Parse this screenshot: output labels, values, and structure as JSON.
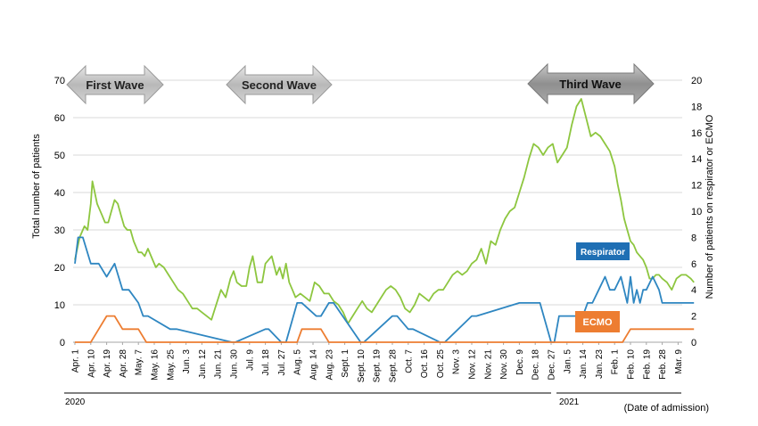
{
  "chart_data": {
    "type": "line",
    "title": "",
    "ylabel_left": "Total number of patients",
    "ylabel_right": "Number of patients on respirator or ECMO",
    "xlabel": "(Date of admission)",
    "ylim_left": [
      0,
      70
    ],
    "yticks_left": [
      "0",
      "10",
      "20",
      "30",
      "40",
      "50",
      "60",
      "70"
    ],
    "ylim_right": [
      0,
      20
    ],
    "yticks_right": [
      "0",
      "2",
      "4",
      "6",
      "8",
      "10",
      "12",
      "14",
      "16",
      "18",
      "20"
    ],
    "grid": true,
    "x_tick_labels": [
      "Apr. 1",
      "Apr. 10",
      "Apr. 19",
      "Apr. 28",
      "May. 7",
      "May. 16",
      "May. 25",
      "Jun. 3",
      "Jun. 12",
      "Jun. 21",
      "Jun. 30",
      "Jul. 9",
      "Jul. 18",
      "Jul. 27",
      "Aug. 5",
      "Aug. 14",
      "Aug. 23",
      "Sept. 1",
      "Sept. 10",
      "Sept. 19",
      "Sept. 28",
      "Oct. 7",
      "Oct. 16",
      "Oct. 25",
      "Nov. 3",
      "Nov. 12",
      "Nov. 21",
      "Nov. 30",
      "Dec. 9",
      "Dec. 18",
      "Dec. 27",
      "Jan. 5",
      "Jan. 14",
      "Jan. 23",
      "Feb. 1",
      "Feb. 10",
      "Feb. 19",
      "Feb. 28",
      "Mar. 9"
    ],
    "years": [
      "2020",
      "2021"
    ],
    "waves": [
      "First Wave",
      "Second Wave",
      "Third Wave"
    ],
    "series": [
      {
        "name": "",
        "axis": "left",
        "color": "#8DC63F",
        "x_tick_index": [
          0,
          0.3,
          0.6,
          0.8,
          1.0,
          1.1,
          1.2,
          1.4,
          1.5,
          1.7,
          1.9,
          2.1,
          2.3,
          2.5,
          2.7,
          2.9,
          3.1,
          3.3,
          3.5,
          3.7,
          4.0,
          4.2,
          4.4,
          4.6,
          4.9,
          5.1,
          5.3,
          5.6,
          5.9,
          6.2,
          6.5,
          6.8,
          7.1,
          7.4,
          7.7,
          8.0,
          8.3,
          8.6,
          8.9,
          9.2,
          9.5,
          9.8,
          10.0,
          10.2,
          10.5,
          10.8,
          11.0,
          11.2,
          11.5,
          11.8,
          12.0,
          12.2,
          12.4,
          12.7,
          12.9,
          13.1,
          13.3,
          13.5,
          13.7,
          13.9,
          14.2,
          14.5,
          14.8,
          15.1,
          15.4,
          15.7,
          16.0,
          16.3,
          16.6,
          16.9,
          17.2,
          17.5,
          17.8,
          18.1,
          18.4,
          18.7,
          19.0,
          19.3,
          19.6,
          19.9,
          20.2,
          20.5,
          20.8,
          21.1,
          21.4,
          21.7,
          22.0,
          22.3,
          22.6,
          22.9,
          23.2,
          23.5,
          23.8,
          24.1,
          24.4,
          24.7,
          25.0,
          25.3,
          25.6,
          25.9,
          26.2,
          26.5,
          26.8,
          27.1,
          27.4,
          27.7,
          28.0,
          28.3,
          28.6,
          28.9,
          29.2,
          29.5,
          29.8,
          30.1,
          30.4,
          30.7,
          31.0,
          31.3,
          31.6,
          31.9,
          32.2,
          32.5,
          32.8,
          33.1,
          33.4,
          33.7,
          34.0,
          34.2,
          34.4,
          34.6,
          34.8,
          35.0,
          35.2,
          35.4,
          35.6,
          35.8,
          36.0,
          36.2,
          36.4,
          36.6,
          36.8,
          37.0,
          37.3,
          37.6,
          37.9,
          38.2,
          38.5,
          38.8,
          39.0
        ],
        "values": [
          22,
          28,
          31,
          30,
          37,
          43,
          41,
          37,
          36,
          34,
          32,
          32,
          35,
          38,
          37,
          34,
          31,
          30,
          30,
          27,
          24,
          24,
          23,
          25,
          22,
          20,
          21,
          20,
          18,
          16,
          14,
          13,
          11,
          9,
          9,
          8,
          7,
          6,
          10,
          14,
          12,
          17,
          19,
          16,
          15,
          15,
          20,
          23,
          16,
          16,
          21,
          22,
          23,
          18,
          20,
          17,
          21,
          16,
          14,
          12,
          13,
          12,
          11,
          16,
          15,
          13,
          13,
          11,
          10,
          8,
          5,
          7,
          9,
          11,
          9,
          8,
          10,
          12,
          14,
          15,
          14,
          12,
          9,
          8,
          10,
          13,
          12,
          11,
          13,
          14,
          14,
          16,
          18,
          19,
          18,
          19,
          21,
          22,
          25,
          21,
          27,
          26,
          30,
          33,
          35,
          36,
          40,
          44,
          49,
          53,
          52,
          50,
          52,
          53,
          48,
          50,
          52,
          58,
          63,
          65,
          60,
          55,
          56,
          55,
          53,
          51,
          47,
          42,
          38,
          33,
          30,
          27,
          26,
          24,
          23,
          22,
          20,
          17,
          17,
          18,
          18,
          17,
          16,
          14,
          17,
          18,
          18,
          17,
          16
        ]
      },
      {
        "name": "Respirator",
        "axis": "right",
        "color": "#2E86C1",
        "x_tick_index": [
          0,
          0.2,
          0.5,
          1.0,
          1.5,
          2.0,
          2.5,
          3.0,
          3.4,
          4.0,
          4.3,
          4.6,
          6.0,
          6.4,
          9.9,
          10.1,
          12.0,
          12.2,
          13.0,
          13.3,
          14.0,
          14.3,
          15.2,
          15.5,
          16.0,
          16.3,
          18.0,
          18.2,
          20.0,
          20.3,
          21.0,
          21.3,
          23.0,
          23.3,
          25.0,
          25.3,
          28.0,
          28.3,
          29.0,
          29.3,
          30.0,
          30.2,
          30.5,
          32.0,
          32.3,
          32.6,
          33.0,
          33.4,
          33.7,
          34.0,
          34.4,
          34.8,
          35.0,
          35.2,
          35.4,
          35.6,
          35.8,
          36.0,
          36.4,
          36.8,
          37.0,
          37.3,
          38.0,
          39.0
        ],
        "values": [
          6,
          8,
          8,
          6,
          6,
          5,
          6,
          4,
          4,
          3,
          2,
          2,
          1,
          1,
          0,
          0,
          1,
          1,
          0,
          0,
          3,
          3,
          2,
          2,
          3,
          3,
          0,
          0,
          2,
          2,
          1,
          1,
          0,
          0,
          2,
          2,
          3,
          3,
          3,
          3,
          0,
          0,
          2,
          2,
          3,
          3,
          4,
          5,
          4,
          4,
          5,
          3,
          5,
          3,
          4,
          3,
          4,
          4,
          5,
          4,
          3,
          3,
          3,
          3
        ]
      },
      {
        "name": "ECMO",
        "axis": "right",
        "color": "#ED7D31",
        "x_tick_index": [
          0,
          1.0,
          1.5,
          2.0,
          2.5,
          3.0,
          3.5,
          4.0,
          4.5,
          14.0,
          14.3,
          15.0,
          15.5,
          16.0,
          34.0,
          34.5,
          35.0,
          39.0
        ],
        "values": [
          0,
          0,
          1,
          2,
          2,
          1,
          1,
          1,
          0,
          0,
          1,
          1,
          1,
          0,
          0,
          0,
          1,
          1
        ]
      }
    ]
  }
}
